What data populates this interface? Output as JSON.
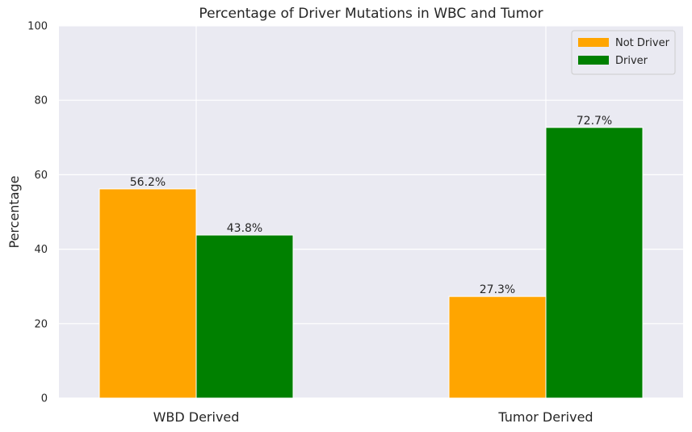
{
  "chart_data": {
    "type": "bar",
    "title": "Percentage of Driver Mutations in WBC and Tumor",
    "xlabel": "",
    "ylabel": "Percentage",
    "categories": [
      "WBD Derived",
      "Tumor Derived"
    ],
    "series": [
      {
        "name": "Not Driver",
        "values": [
          56.2,
          27.3
        ],
        "labels": [
          "56.2%",
          "27.3%"
        ],
        "color": "#ffa500"
      },
      {
        "name": "Driver",
        "values": [
          43.8,
          72.7
        ],
        "labels": [
          "43.8%",
          "72.7%"
        ],
        "color": "#008000"
      }
    ],
    "ylim": [
      0,
      100
    ],
    "yticks": [
      0,
      20,
      40,
      60,
      80,
      100
    ],
    "grid": true,
    "legend_position": "top-right",
    "background": "#eaeaf2"
  }
}
